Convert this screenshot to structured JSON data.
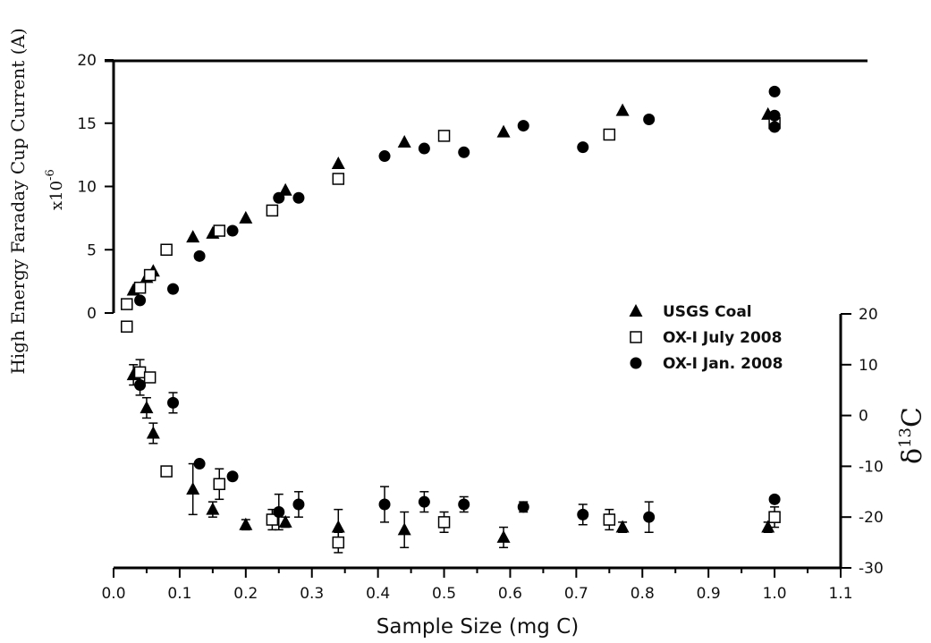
{
  "chart_data": [
    {
      "type": "scatter",
      "title": "",
      "xlabel": "Sample Size (mg C)",
      "ylabel": "High Energy Faraday Cup Current (A)",
      "y_multiplier": "x10",
      "y_multiplier_exponent": "-6",
      "xlim": [
        0.0,
        1.1
      ],
      "ylim": [
        0,
        20
      ],
      "x_ticks": [
        "0.0",
        "0.1",
        "0.2",
        "0.3",
        "0.4",
        "0.5",
        "0.6",
        "0.7",
        "0.8",
        "0.9",
        "1.0",
        "1.1"
      ],
      "y_ticks": [
        "0",
        "5",
        "10",
        "15",
        "20"
      ],
      "series": [
        {
          "name": "USGS Coal",
          "marker": "triangle",
          "points": [
            {
              "x": 0.03,
              "y": 1.8
            },
            {
              "x": 0.05,
              "y": 2.8
            },
            {
              "x": 0.06,
              "y": 3.3
            },
            {
              "x": 0.12,
              "y": 6.0
            },
            {
              "x": 0.15,
              "y": 6.3
            },
            {
              "x": 0.2,
              "y": 7.5
            },
            {
              "x": 0.26,
              "y": 9.7
            },
            {
              "x": 0.34,
              "y": 11.8
            },
            {
              "x": 0.44,
              "y": 13.5
            },
            {
              "x": 0.59,
              "y": 14.3
            },
            {
              "x": 0.77,
              "y": 16.0
            },
            {
              "x": 0.99,
              "y": 15.7
            }
          ]
        },
        {
          "name": "OX-I July 2008",
          "marker": "open-square",
          "points": [
            {
              "x": 0.02,
              "y": 0.7
            },
            {
              "x": 0.04,
              "y": 2.0
            },
            {
              "x": 0.055,
              "y": 3.0
            },
            {
              "x": 0.08,
              "y": 5.0
            },
            {
              "x": 0.16,
              "y": 6.5
            },
            {
              "x": 0.24,
              "y": 8.1
            },
            {
              "x": 0.34,
              "y": 10.6
            },
            {
              "x": 0.5,
              "y": 14.0
            },
            {
              "x": 0.75,
              "y": 14.1
            },
            {
              "x": 1.0,
              "y": 15.0
            }
          ]
        },
        {
          "name": "OX-I Jan. 2008",
          "marker": "filled-circle",
          "points": [
            {
              "x": 0.04,
              "y": 1.0
            },
            {
              "x": 0.09,
              "y": 1.9
            },
            {
              "x": 0.13,
              "y": 4.5
            },
            {
              "x": 0.18,
              "y": 6.5
            },
            {
              "x": 0.25,
              "y": 9.1
            },
            {
              "x": 0.28,
              "y": 9.1
            },
            {
              "x": 0.41,
              "y": 12.4
            },
            {
              "x": 0.47,
              "y": 13.0
            },
            {
              "x": 0.53,
              "y": 12.7
            },
            {
              "x": 0.62,
              "y": 14.8
            },
            {
              "x": 0.71,
              "y": 13.1
            },
            {
              "x": 0.81,
              "y": 15.3
            },
            {
              "x": 1.0,
              "y": 17.5
            },
            {
              "x": 1.0,
              "y": 15.6
            },
            {
              "x": 1.0,
              "y": 14.7
            }
          ]
        }
      ]
    },
    {
      "type": "scatter",
      "title": "",
      "xlabel": "Sample Size (mg C)",
      "ylabel_prefix": "δ",
      "ylabel_superscript": "13",
      "ylabel_suffix": "C",
      "xlim": [
        0.0,
        1.1
      ],
      "ylim": [
        -30,
        20
      ],
      "y_ticks": [
        "20",
        "10",
        "0",
        "-10",
        "-20",
        "-30"
      ],
      "error_bars": true,
      "series": [
        {
          "name": "USGS Coal",
          "marker": "triangle",
          "points": [
            {
              "x": 0.03,
              "y": 8,
              "err": 2
            },
            {
              "x": 0.05,
              "y": 1.5,
              "err": 2
            },
            {
              "x": 0.06,
              "y": -3.5,
              "err": 2
            },
            {
              "x": 0.12,
              "y": -14.5,
              "err": 5
            },
            {
              "x": 0.15,
              "y": -18.5,
              "err": 1.5
            },
            {
              "x": 0.2,
              "y": -21.5,
              "err": 1
            },
            {
              "x": 0.26,
              "y": -21,
              "err": 1
            },
            {
              "x": 0.34,
              "y": -22,
              "err": 3.5
            },
            {
              "x": 0.44,
              "y": -22.5,
              "err": 3.5
            },
            {
              "x": 0.59,
              "y": -24,
              "err": 2
            },
            {
              "x": 0.77,
              "y": -22,
              "err": 1
            },
            {
              "x": 0.99,
              "y": -22,
              "err": 1
            }
          ]
        },
        {
          "name": "OX-I July 2008",
          "marker": "open-square",
          "points": [
            {
              "x": 0.02,
              "y": 17.5,
              "err": 1
            },
            {
              "x": 0.04,
              "y": 8.5,
              "err": 2.5
            },
            {
              "x": 0.055,
              "y": 7.5,
              "err": 1
            },
            {
              "x": 0.08,
              "y": -11,
              "err": 1
            },
            {
              "x": 0.16,
              "y": -13.5,
              "err": 3
            },
            {
              "x": 0.24,
              "y": -20.5,
              "err": 2
            },
            {
              "x": 0.34,
              "y": -25,
              "err": 2
            },
            {
              "x": 0.5,
              "y": -21,
              "err": 2
            },
            {
              "x": 0.75,
              "y": -20.5,
              "err": 2
            },
            {
              "x": 1.0,
              "y": -20,
              "err": 2
            }
          ]
        },
        {
          "name": "OX-I Jan. 2008",
          "marker": "filled-circle",
          "points": [
            {
              "x": 0.04,
              "y": 6,
              "err": 2
            },
            {
              "x": 0.09,
              "y": 2.5,
              "err": 2
            },
            {
              "x": 0.13,
              "y": -9.5,
              "err": 0.5
            },
            {
              "x": 0.18,
              "y": -12,
              "err": 0.5
            },
            {
              "x": 0.25,
              "y": -19,
              "err": 3.5
            },
            {
              "x": 0.28,
              "y": -17.5,
              "err": 2.5
            },
            {
              "x": 0.41,
              "y": -17.5,
              "err": 3.5
            },
            {
              "x": 0.47,
              "y": -17,
              "err": 2
            },
            {
              "x": 0.53,
              "y": -17.5,
              "err": 1.5
            },
            {
              "x": 0.62,
              "y": -18,
              "err": 1
            },
            {
              "x": 0.71,
              "y": -19.5,
              "err": 2
            },
            {
              "x": 0.81,
              "y": -20,
              "err": 3
            },
            {
              "x": 1.0,
              "y": -16.5,
              "err": 0.5
            }
          ]
        }
      ]
    }
  ],
  "legend": {
    "placement": "right-middle",
    "items": [
      {
        "label": "USGS Coal",
        "marker": "triangle"
      },
      {
        "label": "OX-I July 2008",
        "marker": "open-square"
      },
      {
        "label": "OX-I Jan. 2008",
        "marker": "filled-circle"
      }
    ]
  }
}
